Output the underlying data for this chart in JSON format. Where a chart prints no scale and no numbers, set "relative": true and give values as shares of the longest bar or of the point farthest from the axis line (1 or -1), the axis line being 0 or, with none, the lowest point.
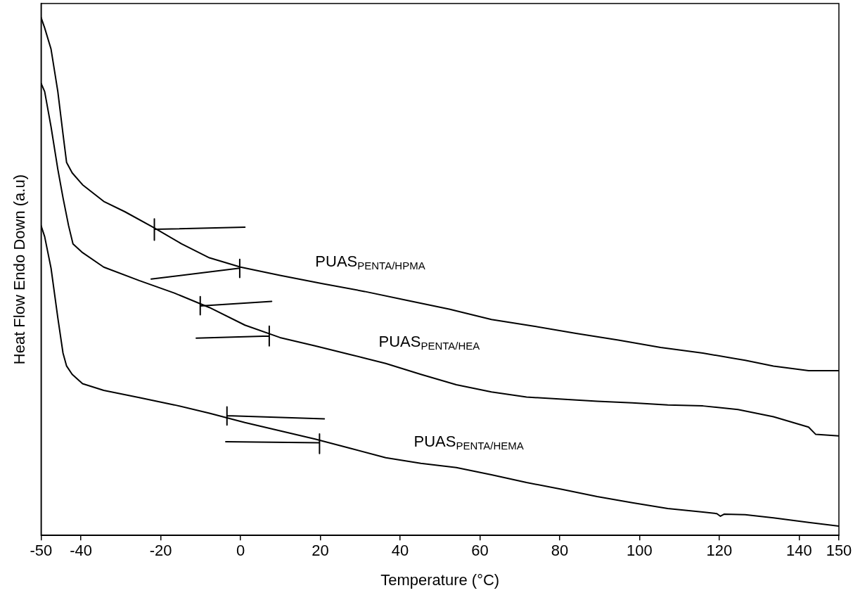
{
  "chart_data": {
    "type": "line",
    "relative": true,
    "xlabel": "Temperature (°C)",
    "ylabel": "Heat Flow Endo Down (a.u)",
    "xlim": [
      -50,
      150
    ],
    "xticks": [
      -50,
      -40,
      -20,
      0,
      20,
      40,
      60,
      80,
      100,
      120,
      140,
      150
    ],
    "grid": false,
    "legend": false,
    "marker": "none",
    "line_style": "solid",
    "series": [
      {
        "name": "PUAS$_{PENTA/HPMA}$",
        "color": "#000000",
        "x": [
          -50,
          -49.1,
          -47.5,
          -45.8,
          -44.5,
          -43.6,
          -42.2,
          -39.6,
          -34.3,
          -29.0,
          -21.9,
          -14.8,
          -7.8,
          0,
          9.9,
          20.5,
          31.1,
          41.7,
          52.3,
          62.9,
          73.5,
          84.1,
          94.7,
          105.3,
          115.9,
          126.5,
          133.6,
          142.4,
          150
        ],
        "values": [
          1.0,
          0.98,
          0.939,
          0.857,
          0.775,
          0.72,
          0.7,
          0.677,
          0.645,
          0.625,
          0.595,
          0.563,
          0.536,
          0.518,
          0.502,
          0.486,
          0.471,
          0.454,
          0.437,
          0.417,
          0.404,
          0.39,
          0.377,
          0.363,
          0.352,
          0.338,
          0.327,
          0.318,
          0.318
        ]
      },
      {
        "name": "PUAS$_{PENTA/HEA}$",
        "color": "#000000",
        "x": [
          -50,
          -49.1,
          -47.5,
          -45.8,
          -44.5,
          -43.1,
          -42.0,
          -39.6,
          -34.3,
          -25.4,
          -16.6,
          -7.8,
          1.1,
          9.9,
          18.7,
          27.6,
          36.4,
          45.2,
          54.1,
          62.9,
          71.7,
          80.6,
          89.4,
          98.2,
          107.1,
          115.9,
          124.7,
          133.6,
          142.4,
          144.2,
          150
        ],
        "values": [
          0.873,
          0.857,
          0.789,
          0.707,
          0.652,
          0.598,
          0.563,
          0.546,
          0.518,
          0.492,
          0.468,
          0.44,
          0.406,
          0.382,
          0.366,
          0.349,
          0.332,
          0.311,
          0.291,
          0.277,
          0.267,
          0.263,
          0.259,
          0.256,
          0.252,
          0.25,
          0.243,
          0.229,
          0.209,
          0.195,
          0.192
        ]
      },
      {
        "name": "PUAS$_{PENTA/HEMA}$",
        "color": "#000000",
        "x": [
          -50,
          -49.1,
          -47.5,
          -45.8,
          -44.5,
          -43.6,
          -42.2,
          -39.6,
          -34.3,
          -25.4,
          -16.6,
          -7.8,
          1.1,
          9.9,
          18.7,
          27.6,
          36.4,
          45.2,
          54.1,
          62.9,
          71.7,
          80.6,
          89.4,
          98.2,
          107.1,
          115.9,
          119.4,
          120.3,
          121.2,
          126.5,
          133.6,
          142.4,
          150
        ],
        "values": [
          0.598,
          0.577,
          0.516,
          0.42,
          0.352,
          0.327,
          0.311,
          0.293,
          0.28,
          0.266,
          0.252,
          0.236,
          0.218,
          0.202,
          0.186,
          0.168,
          0.15,
          0.139,
          0.131,
          0.117,
          0.102,
          0.089,
          0.075,
          0.063,
          0.052,
          0.045,
          0.042,
          0.037,
          0.041,
          0.04,
          0.034,
          0.025,
          0.018
        ]
      },
      {
        "color": "#000000",
        "x": [
          1.1,
          -21.6,
          -21.6,
          -21.6
        ],
        "values": [
          0.595,
          0.591,
          0.611,
          0.57
        ]
      },
      {
        "color": "#000000",
        "x": [
          -22.4,
          -0.2,
          -0.2,
          -0.2
        ],
        "values": [
          0.495,
          0.516,
          0.533,
          0.498
        ]
      },
      {
        "color": "#000000",
        "x": [
          7.8,
          -10.1,
          -10.1,
          -10.1
        ],
        "values": [
          0.452,
          0.443,
          0.461,
          0.426
        ]
      },
      {
        "color": "#000000",
        "x": [
          -11.1,
          7.2,
          7.2,
          7.2
        ],
        "values": [
          0.381,
          0.385,
          0.404,
          0.366
        ]
      },
      {
        "color": "#000000",
        "x": [
          21.0,
          -3.4,
          -3.4,
          -3.4
        ],
        "values": [
          0.225,
          0.231,
          0.248,
          0.213
        ]
      },
      {
        "color": "#000000",
        "x": [
          -3.7,
          19.8,
          19.8,
          19.8
        ],
        "values": [
          0.181,
          0.179,
          0.196,
          0.158
        ]
      }
    ]
  }
}
